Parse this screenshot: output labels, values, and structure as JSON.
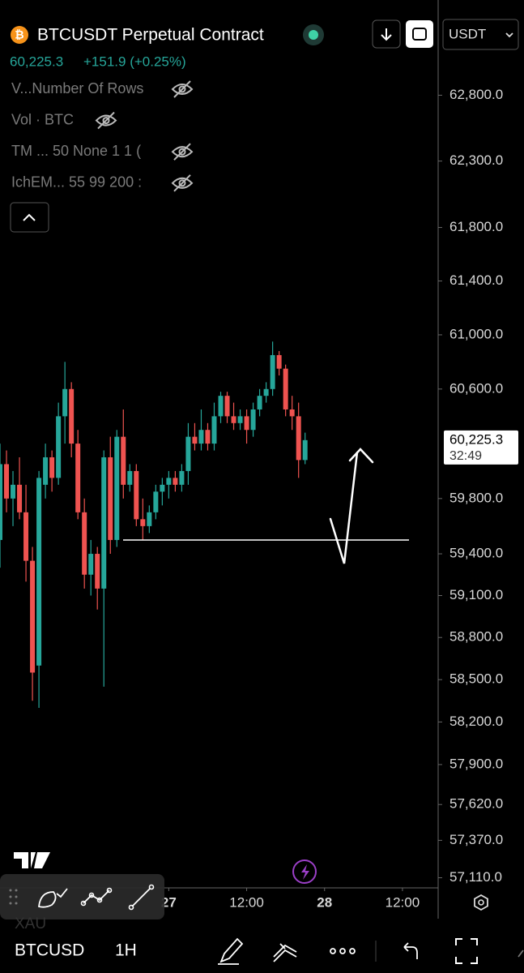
{
  "header": {
    "symbol": "BTCUSDT Perpetual Contract",
    "price": "60,225.3",
    "change": "+151.9 (+0.25%)",
    "currency": "USDT"
  },
  "indicators": [
    "V...Number Of Rows",
    "Vol · BTC",
    "TM ... 50 None 1 1 (",
    "IchEM... 55 99 200 :"
  ],
  "chart_data": {
    "type": "candlestick",
    "log_scale": true,
    "up_color": "#26a69a",
    "down_color": "#ef5350",
    "open": [
      59500,
      60050,
      59800,
      59900,
      59700,
      59350,
      58600,
      59900,
      60100,
      59950,
      60400,
      60600,
      60200,
      59700,
      59250,
      59400,
      59150,
      60100,
      59500,
      60250,
      59900,
      60000,
      59650,
      59600,
      59700,
      59850,
      59900,
      59950,
      59900,
      60000,
      60250,
      60200,
      60300,
      60200,
      60400,
      60550,
      60400,
      60350,
      60400,
      60300,
      60450,
      60550,
      60600,
      60850,
      60750,
      60450,
      60400,
      60080
    ],
    "high": [
      60200,
      60150,
      60000,
      60100,
      59900,
      59450,
      60000,
      60200,
      60150,
      60500,
      60800,
      60650,
      60300,
      59800,
      59500,
      59450,
      60150,
      60250,
      60300,
      60450,
      60050,
      60050,
      59800,
      59750,
      59900,
      59950,
      60000,
      60000,
      60050,
      60350,
      60350,
      60450,
      60350,
      60500,
      60580,
      60580,
      60500,
      60450,
      60450,
      60500,
      60600,
      60650,
      60950,
      60880,
      60780,
      60550,
      60500,
      60280
    ],
    "low": [
      59300,
      59700,
      59600,
      59650,
      59200,
      58350,
      58300,
      59800,
      59850,
      59900,
      60200,
      60100,
      59650,
      59150,
      59100,
      59000,
      58450,
      59400,
      59450,
      59800,
      59850,
      59600,
      59500,
      59550,
      59650,
      59750,
      59800,
      59850,
      59850,
      59900,
      60150,
      60150,
      60150,
      60150,
      60350,
      60350,
      60300,
      60300,
      60200,
      60250,
      60400,
      60500,
      60550,
      60700,
      60400,
      60300,
      59950,
      60050
    ],
    "close": [
      60050,
      59800,
      59900,
      59700,
      59350,
      58550,
      59950,
      60100,
      59950,
      60400,
      60600,
      60200,
      59700,
      59250,
      59400,
      59150,
      60100,
      59500,
      60250,
      59900,
      60000,
      59650,
      59600,
      59700,
      59850,
      59900,
      59950,
      59900,
      60000,
      60250,
      60200,
      60300,
      60200,
      60400,
      60550,
      60400,
      60350,
      60400,
      60300,
      60450,
      60550,
      60600,
      60850,
      60750,
      60450,
      60400,
      60080,
      60225.3
    ],
    "ylim": [
      57040,
      63530
    ],
    "yticks": [
      {
        "value": 62800,
        "label": "62,800.0"
      },
      {
        "value": 62300,
        "label": "62,300.0"
      },
      {
        "value": 61800,
        "label": "61,800.0"
      },
      {
        "value": 61400,
        "label": "61,400.0"
      },
      {
        "value": 61000,
        "label": "61,000.0"
      },
      {
        "value": 60600,
        "label": "60,600.0"
      },
      {
        "value": 59800,
        "label": "59,800.0"
      },
      {
        "value": 59400,
        "label": "59,400.0"
      },
      {
        "value": 59100,
        "label": "59,100.0"
      },
      {
        "value": 58800,
        "label": "58,800.0"
      },
      {
        "value": 58500,
        "label": "58,500.0"
      },
      {
        "value": 58200,
        "label": "58,200.0"
      },
      {
        "value": 57900,
        "label": "57,900.0"
      },
      {
        "value": 57620,
        "label": "57,620.0"
      },
      {
        "value": 57370,
        "label": "57,370.0"
      },
      {
        "value": 57110,
        "label": "57,110.0"
      }
    ],
    "xlim": [
      0,
      67.5
    ],
    "xticks": [
      {
        "value": 26,
        "label": "27"
      },
      {
        "value": 38,
        "label": "12:00"
      },
      {
        "value": 50,
        "label": "28"
      },
      {
        "value": 62,
        "label": "12:00"
      }
    ],
    "hline": 59500
  },
  "price_tag": {
    "price": "60,225.3",
    "countdown": "32:49"
  },
  "footer": {
    "symbol": "BTCUSD",
    "interval": "1H",
    "hidden_symbol": "XAU"
  }
}
